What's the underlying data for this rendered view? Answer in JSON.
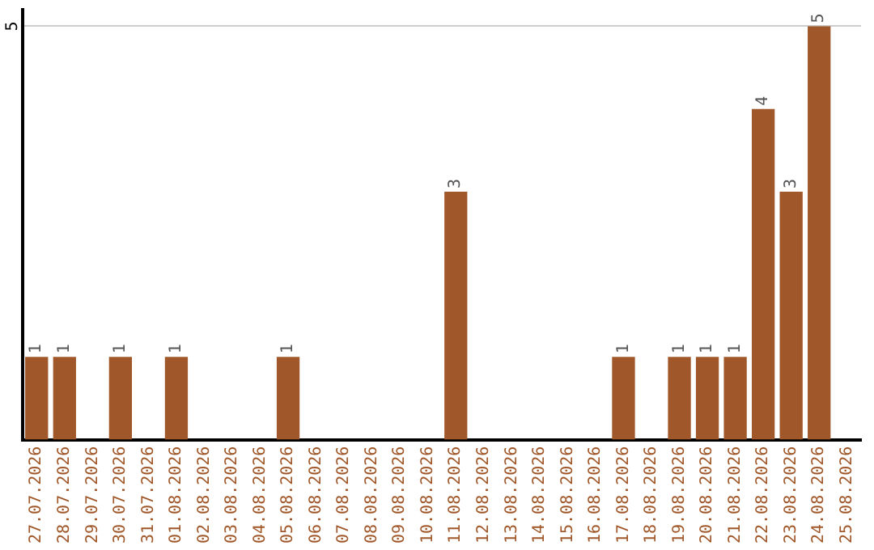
{
  "chart_data": {
    "type": "bar",
    "categories": [
      "27.07.2026",
      "28.07.2026",
      "29.07.2026",
      "30.07.2026",
      "31.07.2026",
      "01.08.2026",
      "02.08.2026",
      "03.08.2026",
      "04.08.2026",
      "05.08.2026",
      "06.08.2026",
      "07.08.2026",
      "08.08.2026",
      "09.08.2026",
      "10.08.2026",
      "11.08.2026",
      "12.08.2026",
      "13.08.2026",
      "14.08.2026",
      "15.08.2026",
      "16.08.2026",
      "17.08.2026",
      "18.08.2026",
      "19.08.2026",
      "20.08.2026",
      "21.08.2026",
      "22.08.2026",
      "23.08.2026",
      "24.08.2026",
      "25.08.2026"
    ],
    "values": [
      1,
      1,
      0,
      1,
      0,
      1,
      0,
      0,
      0,
      1,
      0,
      0,
      0,
      0,
      0,
      3,
      0,
      0,
      0,
      0,
      0,
      1,
      0,
      1,
      1,
      1,
      4,
      3,
      5,
      0
    ],
    "value_labels": [
      "1",
      "1",
      null,
      "1",
      null,
      "1",
      null,
      null,
      null,
      "1",
      null,
      null,
      null,
      null,
      null,
      "3",
      null,
      null,
      null,
      null,
      null,
      "1",
      null,
      "1",
      "1",
      "1",
      "4",
      "3",
      "5",
      null
    ],
    "color": "#a0582a",
    "ylim": [
      0,
      5.2
    ],
    "yticks": [
      5
    ],
    "grid": "y",
    "legend": false
  }
}
